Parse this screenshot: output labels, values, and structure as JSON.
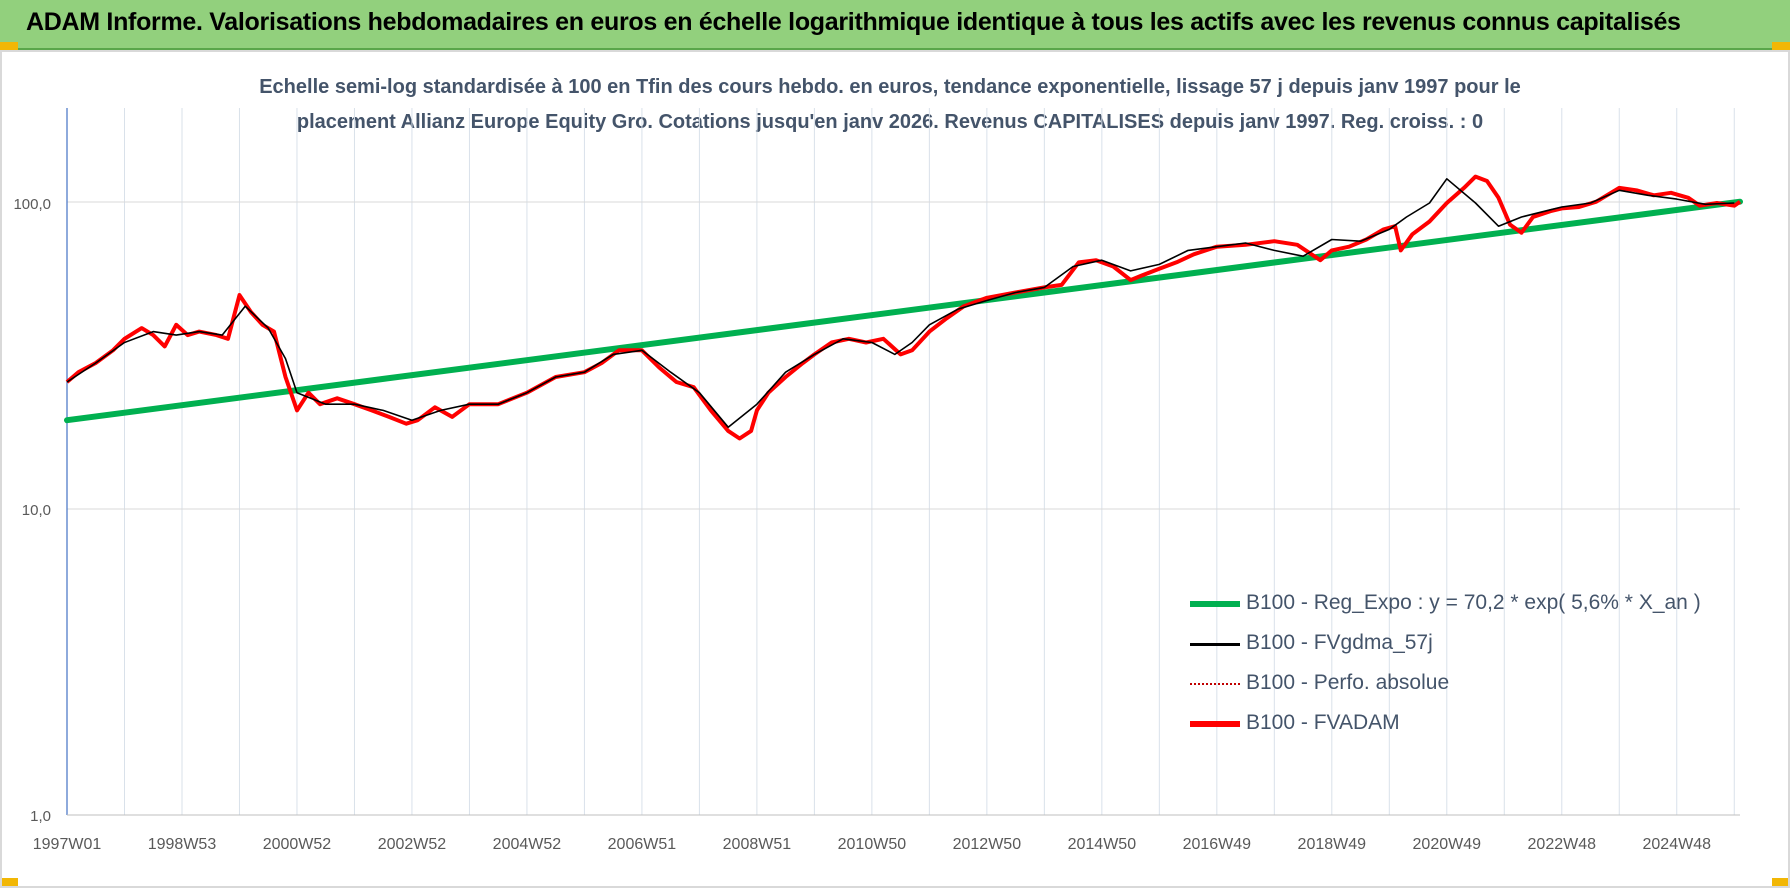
{
  "header": {
    "title": "ADAM Informe. Valorisations hebdomadaires en euros en échelle logarithmique identique à tous les actifs avec les revenus connus capitalisés"
  },
  "chart_data": {
    "type": "line",
    "title_line1": "Echelle semi-log standardisée à 100 en Tfin des cours hebdo. en euros, tendance exponentielle, lissage 57 j depuis janv 1997 pour le",
    "title_line2": "placement Allianz Europe Equity Gro. Cotations jusqu'en janv 2026. Revenus CAPITALISES depuis janv 1997. Reg. croiss. : 0",
    "y_scale": "log",
    "ylim": [
      1,
      180
    ],
    "y_ticks": [
      {
        "value": 1,
        "label": "1,0"
      },
      {
        "value": 10,
        "label": "10,0"
      },
      {
        "value": 100,
        "label": "100,0"
      }
    ],
    "x_ticks": [
      "1997W01",
      "1998W53",
      "2000W52",
      "2002W52",
      "2004W52",
      "2006W51",
      "2008W51",
      "2010W50",
      "2012W50",
      "2014W50",
      "2016W49",
      "2018W49",
      "2020W49",
      "2022W48",
      "2024W48"
    ],
    "xlim": [
      1997.0,
      2026.1
    ],
    "grid": true,
    "legend_position": "bottom-right",
    "series": [
      {
        "name": "B100 - Reg_Expo : y = 70,2 * exp( 5,6% * X_an )",
        "color": "#00b050",
        "x": [
          1997.0,
          2026.1
        ],
        "values": [
          19.5,
          101
        ]
      },
      {
        "name": "B100 - FVgdma_57j",
        "color": "#000000",
        "x": [
          1997.0,
          1997.5,
          1998.0,
          1998.5,
          1998.9,
          1999.3,
          1999.7,
          2000.1,
          2000.5,
          2000.8,
          2001.0,
          2001.5,
          2002.0,
          2002.5,
          2003.0,
          2003.5,
          2004.0,
          2004.5,
          2005.0,
          2005.5,
          2006.0,
          2006.5,
          2007.0,
          2007.5,
          2008.0,
          2008.5,
          2009.0,
          2009.5,
          2010.0,
          2010.5,
          2011.0,
          2011.4,
          2011.7,
          2012.0,
          2012.5,
          2013.0,
          2013.5,
          2014.0,
          2014.5,
          2015.0,
          2015.5,
          2016.0,
          2016.5,
          2017.0,
          2017.5,
          2018.0,
          2018.5,
          2019.0,
          2019.5,
          2020.0,
          2020.3,
          2020.7,
          2021.0,
          2021.5,
          2021.9,
          2022.3,
          2022.8,
          2023.0,
          2023.5,
          2024.0,
          2024.5,
          2025.0,
          2025.5,
          2026.0
        ],
        "values": [
          26,
          30,
          35,
          38,
          37,
          38,
          37,
          46,
          39,
          31,
          24,
          22,
          22,
          21,
          19.5,
          21,
          22,
          22,
          24,
          27,
          28,
          32,
          33,
          28,
          24,
          18.5,
          22,
          28,
          32,
          36,
          35,
          32,
          35,
          40,
          45,
          48,
          51,
          53,
          62,
          65,
          60,
          63,
          70,
          72,
          74,
          70,
          67,
          76,
          75,
          82,
          90,
          100,
          120,
          100,
          84,
          90,
          95,
          97,
          100,
          110,
          106,
          103,
          99,
          100
        ]
      },
      {
        "name": "B100 - Perfo. absolue",
        "color": "#c00000",
        "style": "dotted",
        "x": [],
        "values": []
      },
      {
        "name": "B100 - FVADAM",
        "color": "#ff0000",
        "x": [
          1997.0,
          1997.2,
          1997.5,
          1997.8,
          1998.0,
          1998.3,
          1998.5,
          1998.7,
          1998.9,
          1999.1,
          1999.3,
          1999.6,
          1999.8,
          2000.0,
          2000.2,
          2000.4,
          2000.6,
          2000.8,
          2001.0,
          2001.2,
          2001.4,
          2001.7,
          2002.0,
          2002.3,
          2002.6,
          2002.9,
          2003.1,
          2003.4,
          2003.7,
          2004.0,
          2004.5,
          2005.0,
          2005.5,
          2006.0,
          2006.3,
          2006.6,
          2007.0,
          2007.3,
          2007.6,
          2007.9,
          2008.2,
          2008.5,
          2008.7,
          2008.9,
          2009.0,
          2009.2,
          2009.5,
          2009.8,
          2010.0,
          2010.3,
          2010.6,
          2010.9,
          2011.2,
          2011.5,
          2011.7,
          2012.0,
          2012.3,
          2012.6,
          2013.0,
          2013.5,
          2014.0,
          2014.3,
          2014.6,
          2014.9,
          2015.2,
          2015.5,
          2015.7,
          2016.0,
          2016.3,
          2016.6,
          2017.0,
          2017.5,
          2018.0,
          2018.4,
          2018.8,
          2019.0,
          2019.3,
          2019.6,
          2019.9,
          2020.1,
          2020.2,
          2020.4,
          2020.7,
          2021.0,
          2021.3,
          2021.5,
          2021.7,
          2021.9,
          2022.1,
          2022.3,
          2022.5,
          2022.8,
          2023.0,
          2023.3,
          2023.6,
          2024.0,
          2024.3,
          2024.6,
          2024.9,
          2025.2,
          2025.4,
          2025.7,
          2026.0,
          2026.1
        ],
        "values": [
          26,
          28,
          30,
          33,
          36,
          39,
          37,
          34,
          40,
          37,
          38,
          37,
          36,
          50,
          44,
          40,
          38,
          27,
          21,
          24,
          22,
          23,
          22,
          21,
          20,
          19,
          19.5,
          21.5,
          20,
          22,
          22,
          24,
          27,
          28,
          30,
          33,
          33,
          29,
          26,
          25,
          21,
          18,
          17,
          18,
          21,
          24,
          27,
          30,
          32,
          35,
          36,
          35,
          36,
          32,
          33,
          38,
          42,
          46,
          49,
          51,
          53,
          54,
          64,
          65,
          62,
          56,
          58,
          61,
          64,
          68,
          72,
          73,
          75,
          73,
          65,
          70,
          72,
          76,
          82,
          84,
          70,
          79,
          87,
          100,
          112,
          122,
          118,
          104,
          85,
          80,
          90,
          94,
          96,
          97,
          101,
          112,
          110,
          106,
          108,
          104,
          98,
          100,
          98,
          101
        ]
      }
    ]
  }
}
